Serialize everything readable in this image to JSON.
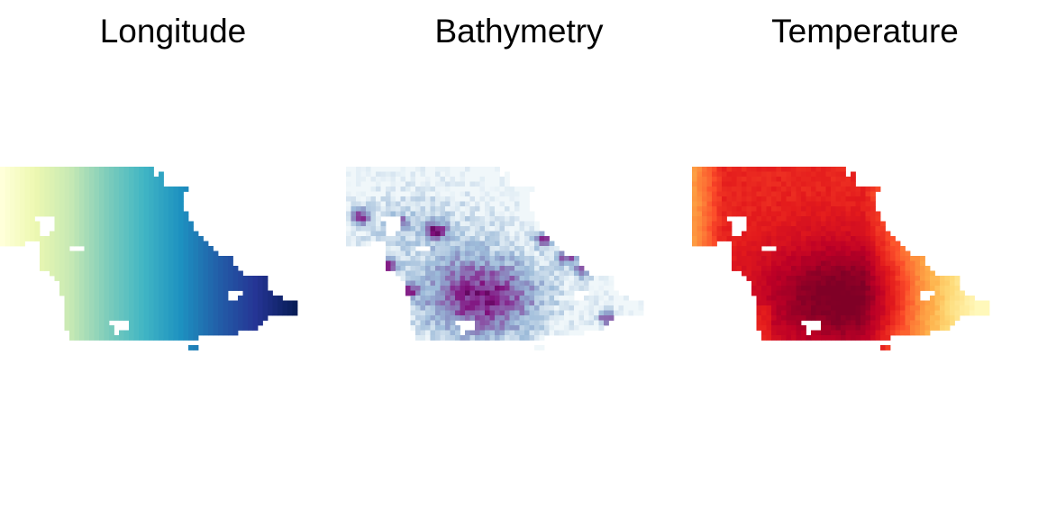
{
  "chart_data": [
    {
      "type": "heatmap",
      "title": "Longitude",
      "colormap": "YlGnBu",
      "legend": "none",
      "grid": false,
      "axes": "none",
      "colors": [
        "#ffffd9",
        "#edf8b1",
        "#c7e9b4",
        "#7fcdbb",
        "#41b6c4",
        "#1d91c0",
        "#225ea8",
        "#253494",
        "#081d58"
      ]
    },
    {
      "type": "heatmap",
      "title": "Bathymetry",
      "colormap": "BuPu",
      "legend": "none",
      "grid": false,
      "axes": "none",
      "colors": [
        "#f7fcfd",
        "#e0ecf4",
        "#bfd3e6",
        "#9ebcda",
        "#8c96c6",
        "#8c6bb1",
        "#88419d",
        "#810f7c",
        "#4d004b"
      ]
    },
    {
      "type": "heatmap",
      "title": "Temperature",
      "colormap": "YlOrRd",
      "legend": "none",
      "grid": false,
      "axes": "none",
      "colors": [
        "#ffffcc",
        "#ffeda0",
        "#fed976",
        "#feb24c",
        "#fd8d3c",
        "#fc4e2a",
        "#e31a1c",
        "#bd0026",
        "#800026"
      ]
    }
  ]
}
